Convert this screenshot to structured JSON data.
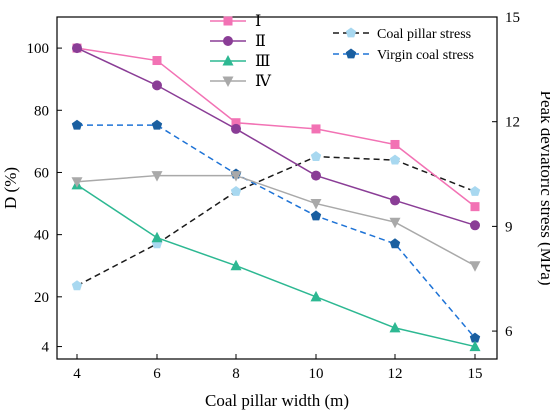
{
  "chart_data": {
    "type": "line",
    "xlabel": "Coal pillar width (m)",
    "ylabel_left": "D (%)",
    "ylabel_right": "Peak deviatoric stress (MPa)",
    "x_categories": [
      "4",
      "6",
      "8",
      "10",
      "12",
      "15"
    ],
    "y_left_ticks": [
      4,
      20,
      40,
      60,
      80,
      100
    ],
    "y_left_range": [
      0,
      110
    ],
    "y_right_ticks": [
      6,
      9,
      12,
      15
    ],
    "y_right_range": [
      5.2,
      15
    ],
    "grid": false,
    "legend_left_position": "top-center",
    "legend_right_position": "top-right",
    "series_left": [
      {
        "name": "Ⅰ",
        "color": "#f272b4",
        "marker": "square",
        "values": [
          100,
          96,
          76,
          74,
          69,
          49
        ]
      },
      {
        "name": "Ⅱ",
        "color": "#8a3d96",
        "marker": "circle",
        "values": [
          100,
          88,
          74,
          59,
          51,
          43
        ]
      },
      {
        "name": "Ⅲ",
        "color": "#2db892",
        "marker": "triangle-up",
        "values": [
          56,
          39,
          30,
          20,
          10,
          4
        ]
      },
      {
        "name": "Ⅳ",
        "color": "#a9a9a9",
        "marker": "triangle-down",
        "values": [
          57,
          59,
          59,
          50,
          44,
          30
        ]
      }
    ],
    "series_right": [
      {
        "name": "Coal pillar stress",
        "color": "#1a1a1a",
        "marker_color": "#a8d8f0",
        "marker": "pentagon",
        "dash": "dashed",
        "values": [
          7.3,
          8.5,
          10.0,
          11.0,
          10.9,
          10.0
        ]
      },
      {
        "name": "Virgin coal stress",
        "color": "#1e73d6",
        "marker_color": "#1a5fa0",
        "marker": "pentagon",
        "dash": "dashed",
        "values": [
          11.9,
          11.9,
          10.5,
          9.3,
          8.5,
          5.8
        ]
      }
    ]
  }
}
